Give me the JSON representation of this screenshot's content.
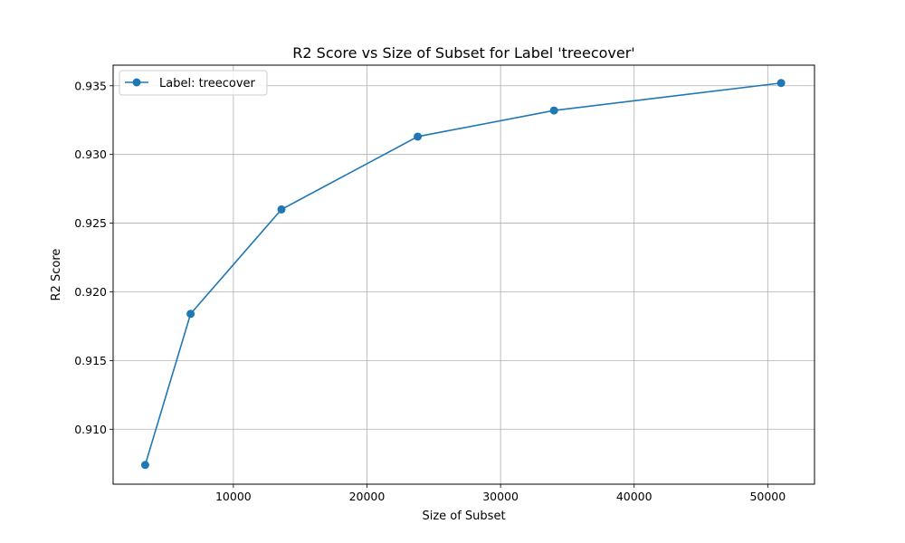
{
  "chart_data": {
    "type": "line",
    "title": "R2 Score vs Size of Subset for Label 'treecover'",
    "xlabel": "Size of Subset",
    "ylabel": "R2 Score",
    "xlim": [
      1000,
      53500
    ],
    "ylim": [
      0.906,
      0.9365
    ],
    "xticks": [
      10000,
      20000,
      30000,
      40000,
      50000
    ],
    "xtick_labels": [
      "10000",
      "20000",
      "30000",
      "40000",
      "50000"
    ],
    "yticks": [
      0.91,
      0.915,
      0.92,
      0.925,
      0.93,
      0.935
    ],
    "ytick_labels": [
      "0.910",
      "0.915",
      "0.920",
      "0.925",
      "0.930",
      "0.935"
    ],
    "grid": true,
    "legend_position": "top-left",
    "series": [
      {
        "name": "Label: treecover",
        "color": "#1f77b4",
        "marker": "circle",
        "x": [
          3400,
          6800,
          13600,
          23800,
          34000,
          51000
        ],
        "y": [
          0.9074,
          0.9184,
          0.926,
          0.9313,
          0.9332,
          0.9352
        ]
      }
    ]
  }
}
